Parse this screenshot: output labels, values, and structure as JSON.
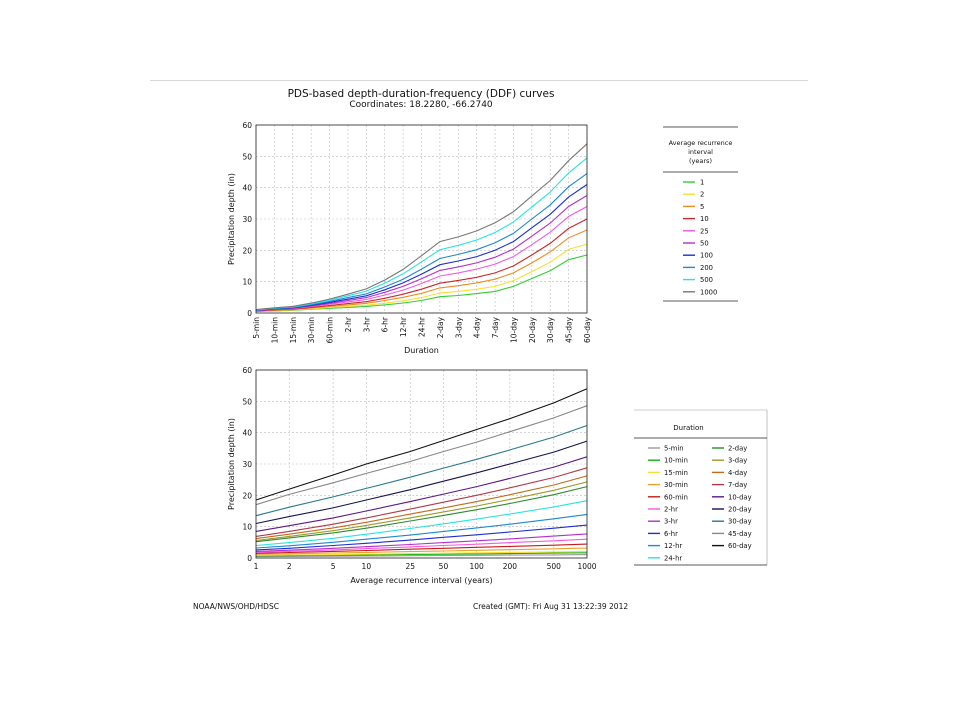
{
  "header": {
    "title": "PDS-based depth-duration-frequency (DDF) curves",
    "subtitle": "Coordinates: 18.2280, -66.2740"
  },
  "footer": {
    "source": "NOAA/NWS/OHD/HDSC",
    "created": "Created (GMT): Fri Aug 31 13:22:39 2012"
  },
  "chart_data": [
    {
      "type": "line",
      "xlabel": "Duration",
      "ylabel": "Precipitation depth (in)",
      "ylim": [
        0,
        60
      ],
      "yticks": [
        0,
        10,
        20,
        30,
        40,
        50,
        60
      ],
      "grid": true,
      "x": [
        "5-min",
        "10-min",
        "15-min",
        "30-min",
        "60-min",
        "2-hr",
        "3-hr",
        "6-hr",
        "12-hr",
        "24-hr",
        "2-day",
        "3-day",
        "4-day",
        "7-day",
        "10-day",
        "20-day",
        "30-day",
        "45-day",
        "60-day"
      ],
      "legend": {
        "title": "Average recurrence interval\n(years)",
        "position": "right"
      },
      "series": [
        {
          "name": "1",
          "color": "#33cc33",
          "values": [
            0.45,
            0.7,
            0.85,
            1.2,
            1.5,
            1.8,
            2.1,
            2.6,
            3.2,
            4.0,
            5.2,
            5.6,
            6.2,
            6.9,
            8.5,
            11.0,
            13.5,
            17.0,
            18.5
          ]
        },
        {
          "name": "2",
          "color": "#f5e132",
          "values": [
            0.5,
            0.78,
            0.95,
            1.35,
            1.75,
            2.1,
            2.5,
            3.1,
            3.9,
            4.9,
            6.4,
            6.9,
            7.6,
            8.5,
            10.3,
            13.2,
            16.2,
            20.3,
            22.0
          ]
        },
        {
          "name": "5",
          "color": "#ee8c1f",
          "values": [
            0.58,
            0.9,
            1.1,
            1.6,
            2.1,
            2.6,
            3.1,
            4.0,
            5.0,
            6.3,
            8.0,
            8.7,
            9.6,
            10.8,
            12.8,
            16.0,
            19.5,
            24.0,
            26.5
          ]
        },
        {
          "name": "10",
          "color": "#c8292a",
          "values": [
            0.65,
            1.0,
            1.25,
            1.8,
            2.4,
            3.0,
            3.6,
            4.7,
            6.0,
            7.6,
            9.5,
            10.4,
            11.4,
            12.8,
            15.0,
            18.5,
            22.2,
            27.0,
            30.0
          ]
        },
        {
          "name": "25",
          "color": "#f25ae5",
          "values": [
            0.72,
            1.12,
            1.4,
            2.05,
            2.8,
            3.55,
            4.3,
            5.7,
            7.3,
            9.4,
            11.8,
            12.8,
            14.0,
            15.6,
            18.0,
            21.8,
            25.8,
            30.8,
            34.0
          ]
        },
        {
          "name": "50",
          "color": "#b62fc7",
          "values": [
            0.8,
            1.22,
            1.52,
            2.25,
            3.1,
            4.0,
            4.9,
            6.6,
            8.5,
            10.9,
            13.6,
            14.7,
            16.0,
            17.8,
            20.4,
            24.5,
            28.7,
            34.0,
            37.5
          ]
        },
        {
          "name": "100",
          "color": "#1d2fcf",
          "values": [
            0.85,
            1.32,
            1.65,
            2.45,
            3.4,
            4.4,
            5.5,
            7.4,
            9.6,
            12.4,
            15.4,
            16.6,
            18.0,
            20.0,
            22.8,
            27.2,
            31.5,
            37.0,
            41.0
          ]
        },
        {
          "name": "200",
          "color": "#1e88d0",
          "values": [
            0.92,
            1.42,
            1.78,
            2.65,
            3.7,
            4.9,
            6.1,
            8.3,
            10.8,
            14.0,
            17.4,
            18.7,
            20.2,
            22.4,
            25.4,
            30.0,
            34.5,
            40.3,
            44.5
          ]
        },
        {
          "name": "500",
          "color": "#29e3e3",
          "values": [
            1.0,
            1.55,
            1.95,
            2.95,
            4.1,
            5.5,
            7.0,
            9.5,
            12.5,
            16.3,
            20.2,
            21.6,
            23.3,
            25.7,
            29.0,
            33.8,
            38.6,
            44.7,
            49.5
          ]
        },
        {
          "name": "1000",
          "color": "#777777",
          "values": [
            1.08,
            1.65,
            2.1,
            3.15,
            4.45,
            6.0,
            7.7,
            10.5,
            13.9,
            18.3,
            22.8,
            24.3,
            26.2,
            28.8,
            32.3,
            37.3,
            42.3,
            48.6,
            54.0
          ]
        }
      ]
    },
    {
      "type": "line",
      "xlabel": "Average recurrence interval (years)",
      "ylabel": "Precipitation depth (in)",
      "xscale": "log",
      "xlim": [
        1,
        1000
      ],
      "ylim": [
        0,
        60
      ],
      "x": [
        1,
        2,
        5,
        10,
        25,
        50,
        100,
        200,
        500,
        1000
      ],
      "yticks": [
        0,
        10,
        20,
        30,
        40,
        50,
        60
      ],
      "grid": true,
      "legend": {
        "title": "Duration",
        "position": "right",
        "columns": 2
      },
      "series": [
        {
          "name": "5-min",
          "color": "#999999",
          "values": [
            0.45,
            0.5,
            0.58,
            0.65,
            0.72,
            0.8,
            0.85,
            0.92,
            1.0,
            1.08
          ]
        },
        {
          "name": "10-min",
          "color": "#10b010",
          "values": [
            0.7,
            0.78,
            0.9,
            1.0,
            1.12,
            1.22,
            1.32,
            1.42,
            1.55,
            1.65
          ]
        },
        {
          "name": "15-min",
          "color": "#f5e132",
          "values": [
            0.85,
            0.95,
            1.1,
            1.25,
            1.4,
            1.52,
            1.65,
            1.78,
            1.95,
            2.1
          ]
        },
        {
          "name": "30-min",
          "color": "#e8a32a",
          "values": [
            1.2,
            1.35,
            1.6,
            1.8,
            2.05,
            2.25,
            2.45,
            2.65,
            2.95,
            3.15
          ]
        },
        {
          "name": "60-min",
          "color": "#c81a1a",
          "values": [
            1.5,
            1.75,
            2.1,
            2.4,
            2.8,
            3.1,
            3.4,
            3.7,
            4.1,
            4.45
          ]
        },
        {
          "name": "2-hr",
          "color": "#f25ae5",
          "values": [
            1.8,
            2.1,
            2.6,
            3.0,
            3.55,
            4.0,
            4.4,
            4.9,
            5.5,
            6.0
          ]
        },
        {
          "name": "3-hr",
          "color": "#b62fc7",
          "values": [
            2.1,
            2.5,
            3.1,
            3.6,
            4.3,
            4.9,
            5.5,
            6.1,
            7.0,
            7.7
          ]
        },
        {
          "name": "6-hr",
          "color": "#1d2fcf",
          "values": [
            2.6,
            3.1,
            4.0,
            4.7,
            5.7,
            6.6,
            7.4,
            8.3,
            9.5,
            10.5
          ]
        },
        {
          "name": "12-hr",
          "color": "#1e88d0",
          "values": [
            3.2,
            3.9,
            5.0,
            6.0,
            7.3,
            8.5,
            9.6,
            10.8,
            12.5,
            13.9
          ]
        },
        {
          "name": "24-hr",
          "color": "#29e3e3",
          "values": [
            4.0,
            4.9,
            6.3,
            7.6,
            9.4,
            10.9,
            12.4,
            14.0,
            16.3,
            18.3
          ]
        },
        {
          "name": "2-day",
          "color": "#2e8b2e",
          "values": [
            5.2,
            6.4,
            8.0,
            9.5,
            11.8,
            13.6,
            15.4,
            17.4,
            20.2,
            22.8
          ]
        },
        {
          "name": "3-day",
          "color": "#9a9a2a",
          "values": [
            5.6,
            6.9,
            8.7,
            10.4,
            12.8,
            14.7,
            16.6,
            18.7,
            21.6,
            24.3
          ]
        },
        {
          "name": "4-day",
          "color": "#c46a1a",
          "values": [
            6.2,
            7.6,
            9.6,
            11.4,
            14.0,
            16.0,
            18.0,
            20.2,
            23.3,
            26.2
          ]
        },
        {
          "name": "7-day",
          "color": "#b03a4a",
          "values": [
            6.9,
            8.5,
            10.8,
            12.8,
            15.6,
            17.8,
            20.0,
            22.4,
            25.7,
            28.8
          ]
        },
        {
          "name": "10-day",
          "color": "#5a1a8a",
          "values": [
            8.5,
            10.3,
            12.8,
            15.0,
            18.0,
            20.4,
            22.8,
            25.4,
            29.0,
            32.3
          ]
        },
        {
          "name": "20-day",
          "color": "#141450",
          "values": [
            11.0,
            13.2,
            16.0,
            18.5,
            21.8,
            24.5,
            27.2,
            30.0,
            33.8,
            37.3
          ]
        },
        {
          "name": "30-day",
          "color": "#2a7a8a",
          "values": [
            13.5,
            16.2,
            19.5,
            22.2,
            25.8,
            28.7,
            31.5,
            34.5,
            38.6,
            42.3
          ]
        },
        {
          "name": "45-day",
          "color": "#888888",
          "values": [
            17.0,
            20.3,
            24.0,
            27.0,
            30.8,
            34.0,
            37.0,
            40.3,
            44.7,
            48.6
          ]
        },
        {
          "name": "60-day",
          "color": "#111111",
          "values": [
            18.5,
            22.0,
            26.5,
            30.0,
            34.0,
            37.5,
            41.0,
            44.5,
            49.5,
            54.0
          ]
        }
      ]
    }
  ]
}
